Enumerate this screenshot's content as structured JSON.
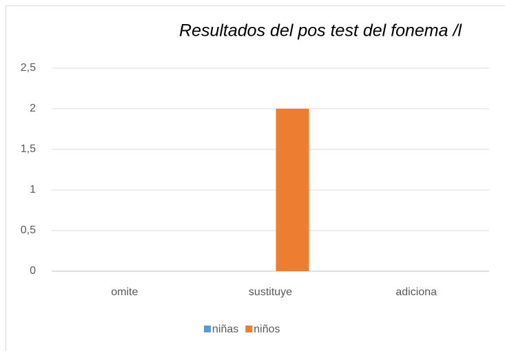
{
  "chart_data": {
    "type": "bar",
    "title": "Resultados del pos test del fonema /l",
    "categories": [
      "omite",
      "sustituye",
      "adiciona"
    ],
    "series": [
      {
        "name": "niñas",
        "color": "#5b9bd5",
        "values": [
          0,
          0,
          0
        ]
      },
      {
        "name": "niños",
        "color": "#ed7d31",
        "values": [
          0,
          2,
          0
        ]
      }
    ],
    "ylim": [
      0,
      2.5
    ],
    "yticks": [
      0,
      {
        "value": 0.5,
        "label": "0,5"
      },
      1,
      {
        "value": 1.5,
        "label": "1,5"
      },
      2,
      {
        "value": 2.5,
        "label": "2,5"
      }
    ],
    "grid": true,
    "legend": "bottom"
  }
}
